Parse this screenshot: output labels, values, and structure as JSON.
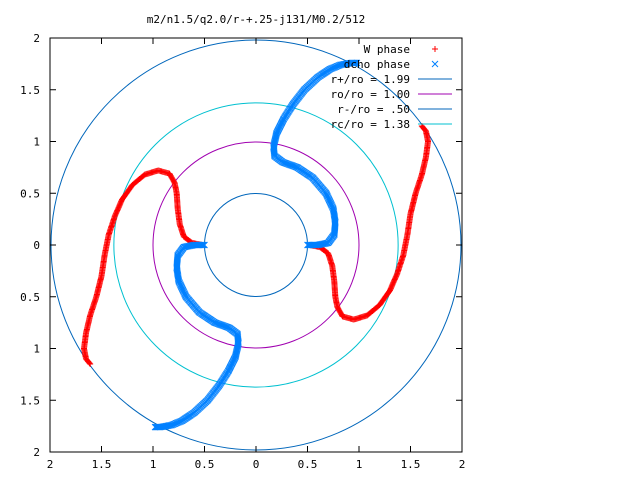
{
  "chart_data": {
    "type": "scatter",
    "title": "m2/n1.5/q2.0/r-+.25-j131/M0.2/512",
    "xlim": [
      -2,
      2
    ],
    "ylim": [
      -2,
      2
    ],
    "x_ticks": [
      -2,
      -1.5,
      -1,
      -0.5,
      0,
      0.5,
      1,
      1.5,
      2
    ],
    "y_ticks": [
      -2,
      -1.5,
      -1,
      -0.5,
      0,
      0.5,
      1,
      1.5,
      2
    ],
    "x_tick_labels": [
      "2",
      "1.5",
      "1",
      "0.5",
      "0",
      "0.5",
      "1",
      "1.5",
      "2"
    ],
    "y_tick_labels": [
      "2",
      "1.5",
      "1",
      "0.5",
      "0",
      "0.5",
      "1",
      "1.5",
      "2"
    ],
    "grid": false,
    "legend_position": "top-right",
    "colors": {
      "w_phase": "#ff0000",
      "dcho_phase": "#0080ff",
      "r_plus": "#0066bb",
      "r_o": "#a000b0",
      "r_minus": "#0066bb",
      "r_c": "#00c0d0"
    },
    "circles": [
      {
        "name": "r+/ro = 1.99",
        "radius": 1.99
      },
      {
        "name": "ro/ro = 1.00",
        "radius": 1.0
      },
      {
        "name": "r-/ro = .50",
        "radius": 0.5
      },
      {
        "name": "rc/ro = 1.38",
        "radius": 1.38
      }
    ],
    "series": [
      {
        "name": "W phase",
        "marker": "plus",
        "arms": [
          [
            [
              0.52,
              0.0
            ],
            [
              0.62,
              -0.02
            ],
            [
              0.7,
              -0.08
            ],
            [
              0.74,
              -0.2
            ],
            [
              0.76,
              -0.35
            ],
            [
              0.77,
              -0.5
            ],
            [
              0.79,
              -0.6
            ],
            [
              0.84,
              -0.69
            ],
            [
              0.95,
              -0.72
            ],
            [
              1.08,
              -0.68
            ],
            [
              1.2,
              -0.58
            ],
            [
              1.3,
              -0.44
            ],
            [
              1.37,
              -0.28
            ],
            [
              1.43,
              -0.1
            ],
            [
              1.47,
              0.1
            ],
            [
              1.5,
              0.3
            ],
            [
              1.55,
              0.5
            ],
            [
              1.61,
              0.68
            ],
            [
              1.65,
              0.85
            ],
            [
              1.67,
              1.0
            ],
            [
              1.65,
              1.1
            ],
            [
              1.61,
              1.15
            ]
          ],
          [
            [
              -0.52,
              0.0
            ],
            [
              -0.62,
              0.02
            ],
            [
              -0.7,
              0.08
            ],
            [
              -0.74,
              0.2
            ],
            [
              -0.76,
              0.35
            ],
            [
              -0.77,
              0.5
            ],
            [
              -0.79,
              0.6
            ],
            [
              -0.84,
              0.69
            ],
            [
              -0.95,
              0.72
            ],
            [
              -1.08,
              0.68
            ],
            [
              -1.2,
              0.58
            ],
            [
              -1.3,
              0.44
            ],
            [
              -1.37,
              0.28
            ],
            [
              -1.43,
              0.1
            ],
            [
              -1.47,
              -0.1
            ],
            [
              -1.5,
              -0.3
            ],
            [
              -1.55,
              -0.5
            ],
            [
              -1.61,
              -0.68
            ],
            [
              -1.65,
              -0.85
            ],
            [
              -1.67,
              -1.0
            ],
            [
              -1.65,
              -1.1
            ],
            [
              -1.61,
              -1.15
            ]
          ]
        ]
      },
      {
        "name": "dcho phase",
        "marker": "x",
        "arms": [
          [
            [
              0.5,
              0.0
            ],
            [
              0.6,
              0.0
            ],
            [
              0.7,
              0.02
            ],
            [
              0.76,
              0.1
            ],
            [
              0.77,
              0.22
            ],
            [
              0.75,
              0.35
            ],
            [
              0.68,
              0.5
            ],
            [
              0.55,
              0.65
            ],
            [
              0.4,
              0.75
            ],
            [
              0.26,
              0.8
            ],
            [
              0.18,
              0.86
            ],
            [
              0.17,
              0.95
            ],
            [
              0.2,
              1.08
            ],
            [
              0.27,
              1.22
            ],
            [
              0.36,
              1.36
            ],
            [
              0.47,
              1.5
            ],
            [
              0.6,
              1.62
            ],
            [
              0.72,
              1.7
            ],
            [
              0.82,
              1.74
            ],
            [
              0.93,
              1.76
            ],
            [
              0.98,
              1.76
            ]
          ],
          [
            [
              -0.5,
              0.0
            ],
            [
              -0.6,
              0.0
            ],
            [
              -0.7,
              -0.02
            ],
            [
              -0.76,
              -0.1
            ],
            [
              -0.77,
              -0.22
            ],
            [
              -0.75,
              -0.35
            ],
            [
              -0.68,
              -0.5
            ],
            [
              -0.55,
              -0.65
            ],
            [
              -0.4,
              -0.75
            ],
            [
              -0.26,
              -0.8
            ],
            [
              -0.18,
              -0.86
            ],
            [
              -0.17,
              -0.95
            ],
            [
              -0.2,
              -1.08
            ],
            [
              -0.27,
              -1.22
            ],
            [
              -0.36,
              -1.36
            ],
            [
              -0.47,
              -1.5
            ],
            [
              -0.6,
              -1.62
            ],
            [
              -0.72,
              -1.7
            ],
            [
              -0.82,
              -1.74
            ],
            [
              -0.93,
              -1.76
            ],
            [
              -0.98,
              -1.76
            ]
          ]
        ]
      }
    ]
  }
}
